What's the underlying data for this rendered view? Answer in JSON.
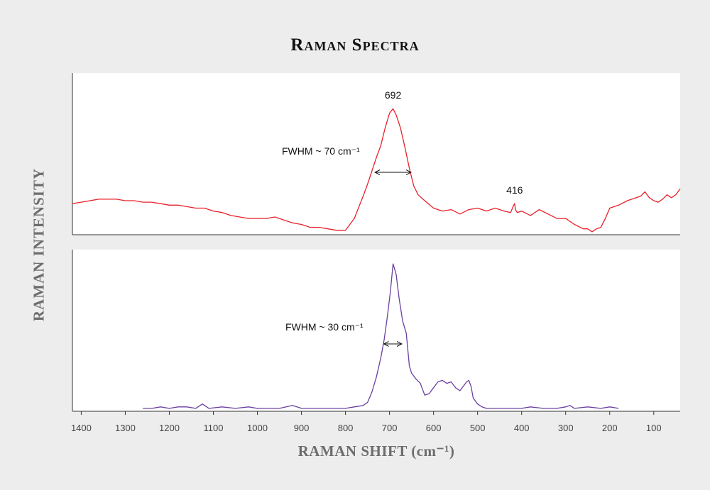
{
  "chart_data": {
    "title": "Raman Spectra",
    "ylabel": "RAMAN INTENSITY",
    "xlabel": "RAMAN SHIFT (cm⁻¹)",
    "x_reversed": true,
    "xlim": [
      1420,
      40
    ],
    "xticks": [
      1400,
      1300,
      1200,
      1100,
      1000,
      900,
      800,
      700,
      600,
      500,
      400,
      300,
      200,
      100
    ],
    "grid": false,
    "panels": [
      {
        "type": "line",
        "color": "#e8212b",
        "ylim": [
          0,
          100
        ],
        "x": [
          1420,
          1400,
          1380,
          1360,
          1340,
          1320,
          1300,
          1280,
          1260,
          1240,
          1220,
          1200,
          1180,
          1160,
          1140,
          1120,
          1100,
          1080,
          1060,
          1040,
          1020,
          1000,
          980,
          960,
          940,
          920,
          900,
          880,
          860,
          840,
          820,
          800,
          780,
          760,
          750,
          740,
          730,
          720,
          710,
          700,
          692,
          685,
          675,
          665,
          655,
          645,
          635,
          620,
          600,
          580,
          560,
          540,
          520,
          500,
          480,
          460,
          440,
          425,
          418,
          416,
          414,
          410,
          400,
          380,
          360,
          340,
          320,
          300,
          280,
          260,
          250,
          240,
          230,
          220,
          210,
          200,
          180,
          160,
          140,
          130,
          120,
          110,
          100,
          90,
          80,
          70,
          60,
          50,
          45,
          40
        ],
        "y": [
          20,
          21,
          22,
          23,
          23,
          23,
          22,
          22,
          21,
          21,
          20,
          19,
          19,
          18,
          17,
          17,
          15,
          14,
          12,
          11,
          10,
          10,
          10,
          11,
          9,
          7,
          6,
          4,
          4,
          3,
          2,
          2,
          10,
          25,
          33,
          42,
          51,
          59,
          71,
          81,
          84,
          80,
          71,
          58,
          44,
          32,
          26,
          22,
          17,
          15,
          16,
          13,
          16,
          17,
          15,
          17,
          15,
          14,
          19,
          20,
          16,
          14,
          15,
          12,
          16,
          13,
          10,
          10,
          6,
          3,
          3,
          1,
          3,
          4,
          10,
          17,
          19,
          22,
          24,
          25,
          28,
          24,
          22,
          21,
          23,
          26,
          24,
          26,
          28,
          30
        ],
        "annotations": [
          {
            "text": "692"
          },
          {
            "text": "416"
          },
          {
            "text": "FWHM ~ 70 cm⁻¹",
            "from": 733,
            "to": 651
          }
        ]
      },
      {
        "type": "line",
        "color": "#6a3fa0",
        "ylim": [
          0,
          100
        ],
        "x": [
          1260,
          1240,
          1220,
          1200,
          1180,
          1160,
          1140,
          1125,
          1110,
          1080,
          1050,
          1020,
          1000,
          980,
          950,
          920,
          900,
          880,
          860,
          840,
          820,
          800,
          780,
          760,
          750,
          740,
          730,
          720,
          712,
          705,
          698,
          692,
          685,
          678,
          670,
          662,
          655,
          650,
          640,
          630,
          620,
          610,
          600,
          590,
          580,
          570,
          560,
          550,
          540,
          530,
          525,
          520,
          515,
          510,
          500,
          490,
          480,
          470,
          460,
          450,
          430,
          400,
          380,
          350,
          320,
          300,
          290,
          280,
          250,
          220,
          200,
          180
        ],
        "y": [
          1,
          1,
          2,
          1,
          2,
          2,
          1,
          4,
          1,
          2,
          1,
          2,
          1,
          1,
          1,
          3,
          1,
          1,
          1,
          1,
          1,
          1,
          2,
          3,
          5,
          12,
          22,
          35,
          48,
          63,
          80,
          99,
          92,
          75,
          60,
          52,
          30,
          25,
          21,
          18,
          10,
          11,
          15,
          19,
          20,
          18,
          19,
          15,
          13,
          17,
          19,
          20,
          16,
          8,
          4,
          2,
          1,
          1,
          1,
          1,
          1,
          1,
          2,
          1,
          1,
          2,
          3,
          1,
          2,
          1,
          2,
          1
        ],
        "annotations": [
          {
            "text": "FWHM ~ 30 cm⁻¹",
            "from": 713,
            "to": 672
          }
        ]
      }
    ]
  }
}
